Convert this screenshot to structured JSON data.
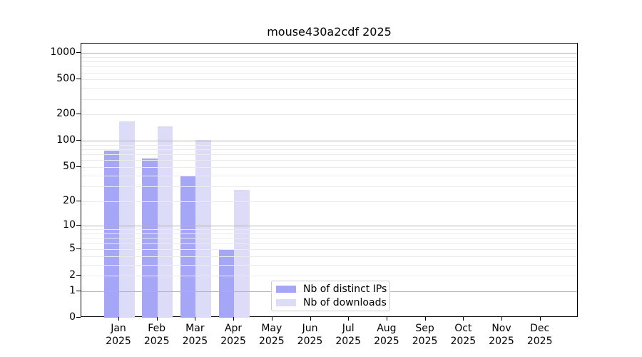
{
  "title": "mouse430a2cdf 2025",
  "chart_data": {
    "type": "bar",
    "title": "mouse430a2cdf 2025",
    "categories": [
      "Jan",
      "Feb",
      "Mar",
      "Apr",
      "May",
      "Jun",
      "Jul",
      "Aug",
      "Sep",
      "Oct",
      "Nov",
      "Dec"
    ],
    "category_year": "2025",
    "series": [
      {
        "name": "Nb of distinct IPs",
        "color": "#a6a6f6",
        "values": [
          77,
          63,
          40,
          5,
          null,
          null,
          null,
          null,
          null,
          null,
          null,
          null
        ]
      },
      {
        "name": "Nb of downloads",
        "color": "#dcdcf9",
        "values": [
          166,
          147,
          103,
          27,
          null,
          null,
          null,
          null,
          null,
          null,
          null,
          null
        ]
      }
    ],
    "y_axis": {
      "scale": "log1p",
      "ticks": [
        0,
        1,
        2,
        5,
        10,
        20,
        50,
        100,
        200,
        500,
        1000
      ],
      "ylim": [
        0,
        1281
      ],
      "major_gridlines": [
        1,
        10,
        100,
        1000
      ],
      "minor_gridlines": [
        2,
        3,
        4,
        5,
        6,
        7,
        8,
        9,
        20,
        30,
        40,
        50,
        60,
        70,
        80,
        90,
        200,
        300,
        400,
        500,
        600,
        700,
        800,
        900
      ]
    },
    "legend_position": "lower center",
    "grid": "on",
    "colors": {
      "major_grid": "#b3b3b3",
      "minor_grid": "#ebebeb",
      "axis": "#000000",
      "text": "#000000"
    }
  }
}
